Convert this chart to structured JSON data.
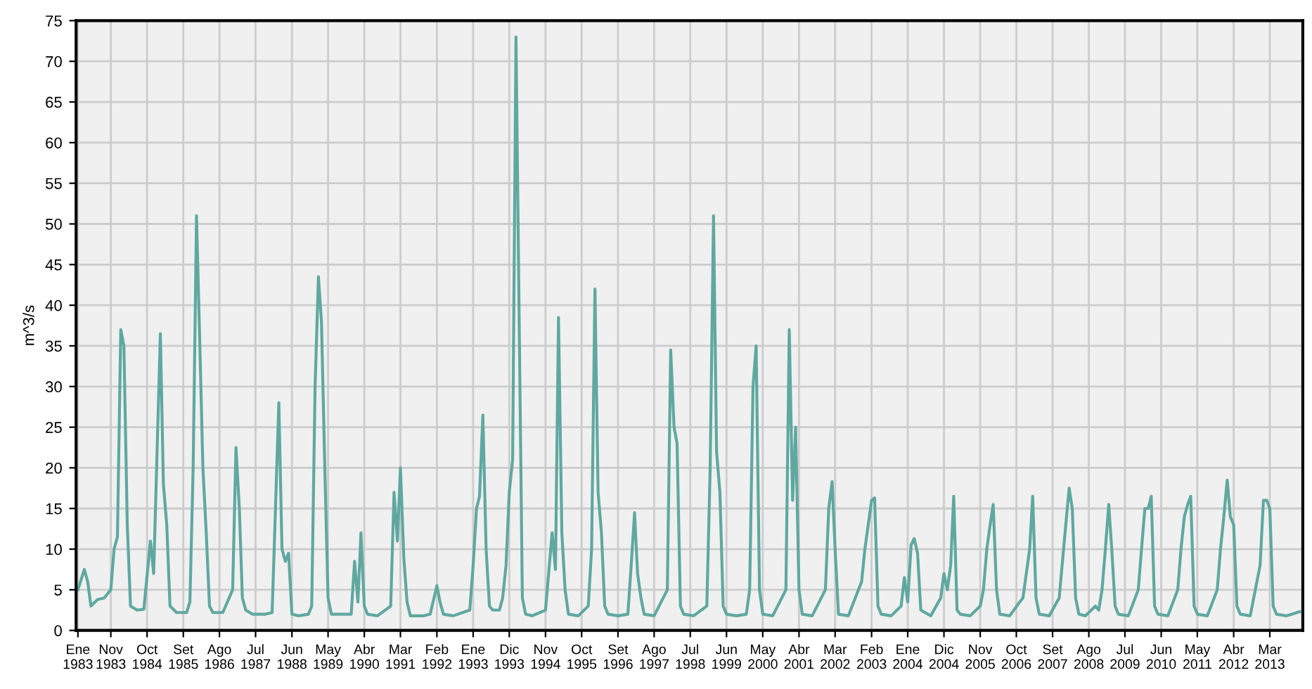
{
  "chart_data": {
    "type": "line",
    "ylabel": "m^3/s",
    "x": [
      "1983-01",
      "1983-03",
      "1983-04",
      "1983-05",
      "1983-07",
      "1983-09",
      "1983-11",
      "1983-12",
      "1984-01",
      "1984-02",
      "1984-03",
      "1984-04",
      "1984-05",
      "1984-07",
      "1984-09",
      "1984-11",
      "1984-12",
      "1985-02",
      "1985-03",
      "1985-04",
      "1985-05",
      "1985-07",
      "1985-10",
      "1985-11",
      "1985-12",
      "1986-01",
      "1986-02",
      "1986-03",
      "1986-04",
      "1986-05",
      "1986-06",
      "1986-09",
      "1986-12",
      "1987-01",
      "1987-02",
      "1987-03",
      "1987-04",
      "1987-06",
      "1987-10",
      "1987-12",
      "1988-01",
      "1988-02",
      "1988-03",
      "1988-04",
      "1988-05",
      "1988-06",
      "1988-08",
      "1988-11",
      "1988-12",
      "1989-01",
      "1989-02",
      "1989-03",
      "1989-04",
      "1989-05",
      "1989-06",
      "1989-09",
      "1989-12",
      "1990-01",
      "1990-02",
      "1990-03",
      "1990-04",
      "1990-05",
      "1990-08",
      "1990-12",
      "1991-01",
      "1991-02",
      "1991-03",
      "1991-04",
      "1991-05",
      "1991-06",
      "1991-10",
      "1991-12",
      "1992-02",
      "1992-03",
      "1992-04",
      "1992-07",
      "1992-12",
      "1993-01",
      "1993-02",
      "1993-03",
      "1993-04",
      "1993-05",
      "1993-06",
      "1993-07",
      "1993-09",
      "1993-10",
      "1993-11",
      "1993-12",
      "1994-01",
      "1994-02",
      "1994-03",
      "1994-04",
      "1994-05",
      "1994-07",
      "1994-11",
      "1995-01",
      "1995-02",
      "1995-03",
      "1995-04",
      "1995-05",
      "1995-06",
      "1995-09",
      "1995-12",
      "1996-01",
      "1996-02",
      "1996-03",
      "1996-04",
      "1996-05",
      "1996-06",
      "1996-09",
      "1996-12",
      "1997-01",
      "1997-02",
      "1997-03",
      "1997-04",
      "1997-05",
      "1997-08",
      "1997-12",
      "1998-01",
      "1998-02",
      "1998-03",
      "1998-04",
      "1998-05",
      "1998-08",
      "1998-12",
      "1999-01",
      "1999-02",
      "1999-03",
      "1999-04",
      "1999-05",
      "1999-06",
      "1999-09",
      "1999-12",
      "2000-01",
      "2000-02",
      "2000-03",
      "2000-04",
      "2000-05",
      "2000-08",
      "2000-12",
      "2001-01",
      "2001-02",
      "2001-03",
      "2001-04",
      "2001-05",
      "2001-08",
      "2001-12",
      "2002-01",
      "2002-02",
      "2002-03",
      "2002-04",
      "2002-07",
      "2002-11",
      "2002-12",
      "2003-02",
      "2003-03",
      "2003-04",
      "2003-05",
      "2003-08",
      "2003-11",
      "2003-12",
      "2004-01",
      "2004-02",
      "2004-03",
      "2004-04",
      "2004-05",
      "2004-08",
      "2004-11",
      "2004-12",
      "2005-01",
      "2005-02",
      "2005-03",
      "2005-04",
      "2005-05",
      "2005-08",
      "2005-11",
      "2005-12",
      "2006-01",
      "2006-02",
      "2006-03",
      "2006-04",
      "2006-05",
      "2006-08",
      "2006-11",
      "2006-12",
      "2007-01",
      "2007-02",
      "2007-03",
      "2007-04",
      "2007-05",
      "2007-08",
      "2007-11",
      "2008-01",
      "2008-02",
      "2008-03",
      "2008-04",
      "2008-05",
      "2008-07",
      "2008-10",
      "2008-11",
      "2008-12",
      "2009-01",
      "2009-02",
      "2009-03",
      "2009-04",
      "2009-05",
      "2009-08",
      "2009-11",
      "2009-12",
      "2010-01",
      "2010-02",
      "2010-03",
      "2010-04",
      "2010-05",
      "2010-08",
      "2010-11",
      "2010-12",
      "2011-01",
      "2011-02",
      "2011-03",
      "2011-04",
      "2011-05",
      "2011-08",
      "2011-11",
      "2011-12",
      "2012-01",
      "2012-02",
      "2012-03",
      "2012-04",
      "2012-05",
      "2012-06",
      "2012-09",
      "2012-12",
      "2013-01",
      "2013-02",
      "2013-03",
      "2013-04",
      "2013-05",
      "2013-08",
      "2013-12"
    ],
    "series": [
      {
        "color": "#5fa8a0",
        "values": [
          5,
          7.5,
          6,
          3,
          3.8,
          4,
          5,
          10,
          11.5,
          37,
          35,
          13,
          3,
          2.5,
          2.6,
          11,
          7,
          36.5,
          18,
          13,
          3,
          2.2,
          2.2,
          3.5,
          20,
          51,
          35,
          20,
          12,
          3,
          2.2,
          2.2,
          5,
          22.5,
          15,
          4,
          2.5,
          2,
          2,
          2.2,
          15,
          28,
          10,
          8.5,
          9.5,
          2,
          1.8,
          2,
          3,
          30,
          43.5,
          38,
          20,
          4,
          2,
          2,
          2,
          8.5,
          3.5,
          12,
          3,
          2,
          1.8,
          3,
          17,
          11,
          20,
          9,
          3.5,
          1.8,
          1.8,
          2,
          5.5,
          3.5,
          2,
          1.8,
          2.5,
          8,
          15,
          16.5,
          26.5,
          10,
          3,
          2.5,
          2.5,
          4,
          8,
          17,
          21,
          73,
          40,
          4,
          2,
          1.8,
          2.5,
          12,
          7.5,
          38.5,
          12,
          5,
          2,
          1.8,
          3,
          10,
          42,
          17,
          12,
          3,
          2,
          1.8,
          2,
          8,
          14.5,
          7,
          4,
          2,
          1.8,
          5,
          34.5,
          25,
          23,
          3,
          2,
          1.8,
          3,
          20,
          51,
          22,
          17,
          3,
          2,
          1.8,
          2,
          5,
          30,
          35,
          5,
          2,
          1.8,
          5,
          37,
          16,
          25,
          5,
          2,
          1.8,
          5,
          15,
          18.3,
          10,
          2,
          1.8,
          6,
          10,
          16,
          16.3,
          3,
          2,
          1.8,
          3,
          6.5,
          3.5,
          10.5,
          11.3,
          9.5,
          2.5,
          1.8,
          4,
          7,
          5,
          8,
          16.5,
          2.5,
          2,
          1.8,
          3,
          5,
          10,
          13,
          15.5,
          5,
          2,
          1.8,
          3.5,
          4,
          7,
          10,
          16.5,
          4,
          2,
          1.8,
          4,
          13,
          17.5,
          15,
          4,
          2,
          1.8,
          3,
          2.5,
          5,
          10,
          15.5,
          10,
          3,
          2,
          1.8,
          5,
          10,
          15,
          15,
          16.5,
          3,
          2,
          1.8,
          5,
          10,
          14,
          15.5,
          16.5,
          3,
          2,
          1.8,
          5,
          10,
          14,
          18.5,
          14,
          13,
          3,
          2,
          1.8,
          8,
          16,
          16,
          15,
          3,
          2,
          1.8,
          2.3
        ]
      }
    ],
    "xlim": [
      "1982-12-15",
      "2013-12-31"
    ],
    "xticks": [
      {
        "value": "1983-01",
        "label": "Ene\n1983"
      },
      {
        "value": "1983-11",
        "label": "Nov\n1983"
      },
      {
        "value": "1984-10",
        "label": "Oct\n1984"
      },
      {
        "value": "1985-09",
        "label": "Set\n1985"
      },
      {
        "value": "1986-08",
        "label": "Ago\n1986"
      },
      {
        "value": "1987-07",
        "label": "Jul\n1987"
      },
      {
        "value": "1988-06",
        "label": "Jun\n1988"
      },
      {
        "value": "1989-05",
        "label": "May\n1989"
      },
      {
        "value": "1990-04",
        "label": "Abr\n1990"
      },
      {
        "value": "1991-03",
        "label": "Mar\n1991"
      },
      {
        "value": "1992-02",
        "label": "Feb\n1992"
      },
      {
        "value": "1993-01",
        "label": "Ene\n1993"
      },
      {
        "value": "1993-12",
        "label": "Dic\n1993"
      },
      {
        "value": "1994-11",
        "label": "Nov\n1994"
      },
      {
        "value": "1995-10",
        "label": "Oct\n1995"
      },
      {
        "value": "1996-09",
        "label": "Set\n1996"
      },
      {
        "value": "1997-08",
        "label": "Ago\n1997"
      },
      {
        "value": "1998-07",
        "label": "Jul\n1998"
      },
      {
        "value": "1999-06",
        "label": "Jun\n1999"
      },
      {
        "value": "2000-05",
        "label": "May\n2000"
      },
      {
        "value": "2001-04",
        "label": "Abr\n2001"
      },
      {
        "value": "2002-03",
        "label": "Mar\n2002"
      },
      {
        "value": "2003-02",
        "label": "Feb\n2003"
      },
      {
        "value": "2004-01",
        "label": "Ene\n2004"
      },
      {
        "value": "2004-12",
        "label": "Dic\n2004"
      },
      {
        "value": "2005-11",
        "label": "Nov\n2005"
      },
      {
        "value": "2006-10",
        "label": "Oct\n2006"
      },
      {
        "value": "2007-09",
        "label": "Set\n2007"
      },
      {
        "value": "2008-08",
        "label": "Ago\n2008"
      },
      {
        "value": "2009-07",
        "label": "Jul\n2009"
      },
      {
        "value": "2010-06",
        "label": "Jun\n2010"
      },
      {
        "value": "2011-05",
        "label": "May\n2011"
      },
      {
        "value": "2012-04",
        "label": "Abr\n2012"
      },
      {
        "value": "2013-03",
        "label": "Mar\n2013"
      }
    ],
    "ylim": [
      0,
      75
    ],
    "yticks": [
      0,
      5,
      10,
      15,
      20,
      25,
      30,
      35,
      40,
      45,
      50,
      55,
      60,
      65,
      70,
      75
    ],
    "grid": true,
    "legend": false,
    "marker": "none",
    "line_style": "solid"
  }
}
